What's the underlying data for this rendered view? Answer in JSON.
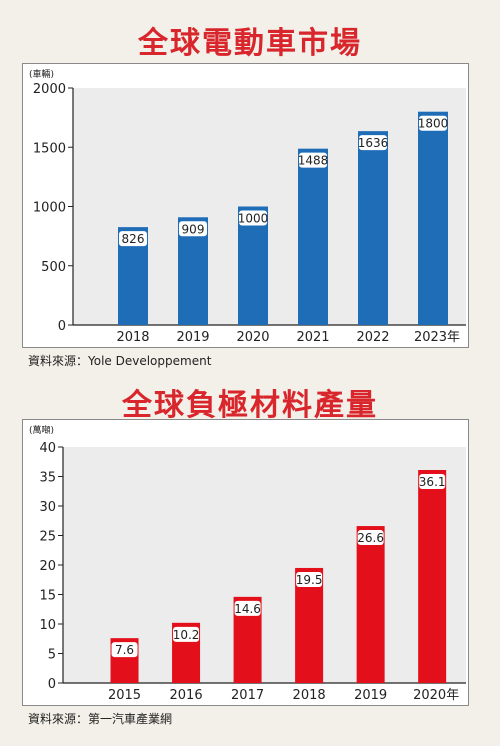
{
  "chart_data": [
    {
      "type": "bar",
      "title": "全球電動車市場",
      "unit_label": "(車輛)",
      "categories": [
        "2018",
        "2019",
        "2020",
        "2021",
        "2022",
        "2023年"
      ],
      "values": [
        826,
        909,
        1000,
        1488,
        1636,
        1800
      ],
      "data_labels": [
        "826",
        "909",
        "1000",
        "1488",
        "1636",
        "1800"
      ],
      "yticks": [
        "0",
        "500",
        "1000",
        "1500",
        "2000"
      ],
      "ylim": [
        0,
        2000
      ],
      "source": "資料來源：Yole Developpement",
      "bar_color": "#1f6db6",
      "grid": false
    },
    {
      "type": "bar",
      "title": "全球負極材料產量",
      "unit_label": "(萬噸)",
      "categories": [
        "2015",
        "2016",
        "2017",
        "2018",
        "2019",
        "2020年"
      ],
      "values": [
        7.6,
        10.2,
        14.6,
        19.5,
        26.6,
        36.1
      ],
      "data_labels": [
        "7.6",
        "10.2",
        "14.6",
        "19.5",
        "26.6",
        "36.1"
      ],
      "yticks": [
        "0",
        "5",
        "10",
        "15",
        "20",
        "25",
        "30",
        "35",
        "40"
      ],
      "ylim": [
        0,
        40
      ],
      "source": "資料來源：第一汽車產業網",
      "bar_color": "#e30f1b",
      "grid": false
    }
  ]
}
